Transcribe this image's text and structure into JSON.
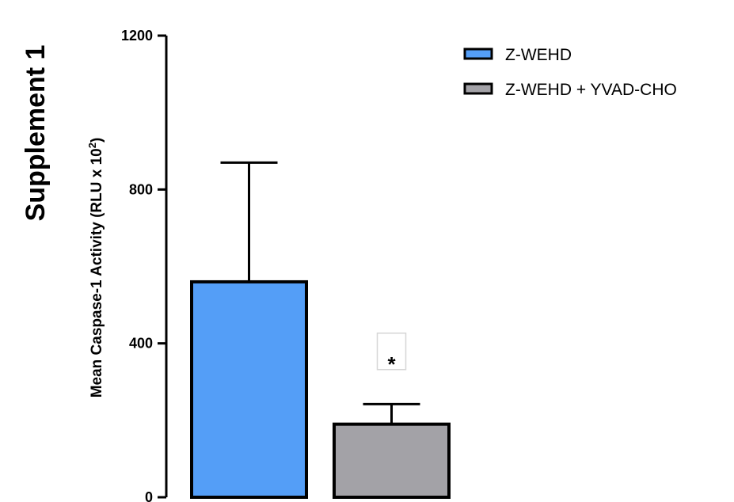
{
  "figure_title": "Supplement 1",
  "chart_data": {
    "type": "bar",
    "title": "",
    "ylabel": "Mean Caspase-1 Activity (RLU x 10",
    "ylabel_superscript": "2",
    "ylabel_suffix": ")",
    "xlabel": "",
    "ylim": [
      0,
      1200
    ],
    "yticks": [
      0,
      400,
      800,
      1200
    ],
    "yticks_labels": [
      "0",
      "400",
      "800",
      "1200"
    ],
    "grid": false,
    "legend_position": "top-right",
    "series": [
      {
        "name": "Z-WEHD",
        "value": 560,
        "error": 310,
        "color": "#549ef7"
      },
      {
        "name": "Z-WEHD + YVAD-CHO",
        "value": 190,
        "error": 52,
        "color": "#a3a2a7"
      }
    ],
    "annotation": {
      "text": "*",
      "series_index": 1,
      "y": 336
    }
  }
}
